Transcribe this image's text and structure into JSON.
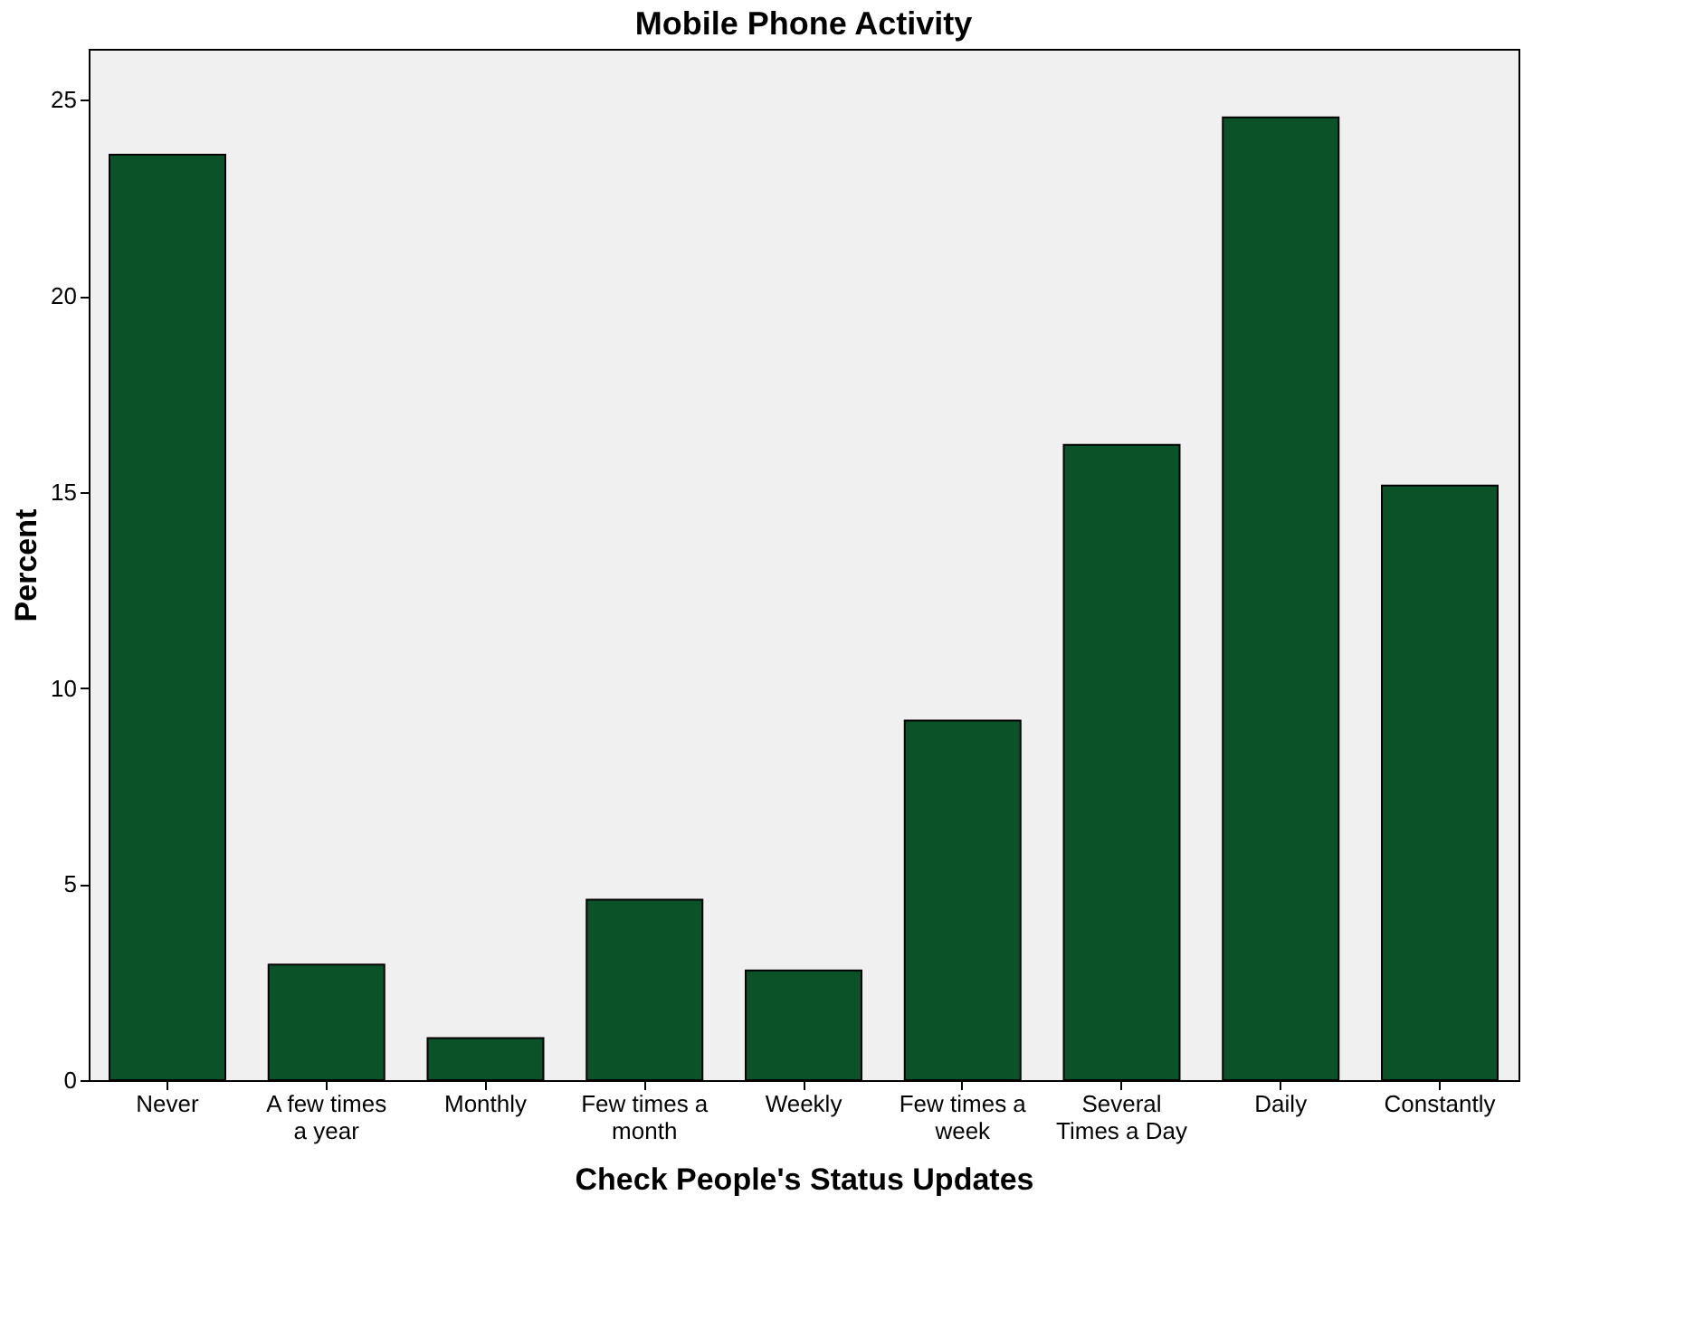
{
  "chart_data": {
    "type": "bar",
    "title": "Mobile Phone Activity",
    "xlabel": "Check People's Status Updates",
    "ylabel": "Percent",
    "categories": [
      "Never",
      "A few times a year",
      "Monthly",
      "Few times a month",
      "Weekly",
      "Few times a week",
      "Several Times a Day",
      "Daily",
      "Constantly"
    ],
    "values": [
      23.6,
      2.95,
      1.07,
      4.6,
      2.8,
      9.17,
      16.2,
      24.55,
      15.16
    ],
    "color": "#0b5229",
    "ylim": [
      0,
      26.3
    ],
    "yticks": [
      0,
      5,
      10,
      15,
      20,
      25
    ],
    "grid": false
  }
}
